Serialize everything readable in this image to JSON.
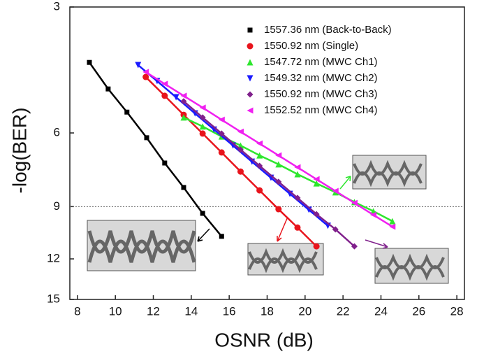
{
  "chart_data": {
    "type": "scatter",
    "x_label": "OSNR (dB)",
    "y_label": "-log(BER)",
    "xlim": [
      7.6,
      28.4
    ],
    "xticks": [
      8,
      10,
      12,
      14,
      16,
      18,
      20,
      22,
      24,
      26,
      28
    ],
    "ylim": [
      3,
      15
    ],
    "yticks": [
      3,
      6,
      9,
      12,
      15
    ],
    "y_scale": "log",
    "y_inverted": true,
    "reference_line": 9,
    "series": [
      {
        "name": "1557.36 nm (Back-to-Back)",
        "color": "#000000",
        "marker": "square",
        "x": [
          8.63,
          9.62,
          10.61,
          11.65,
          12.6,
          13.6,
          14.6,
          15.6
        ],
        "values": [
          4.07,
          4.71,
          5.35,
          6.16,
          7.08,
          8.1,
          9.34,
          10.6
        ]
      },
      {
        "name": "1550.92 nm (Single)",
        "color": "#e8141c",
        "marker": "circle",
        "x": [
          11.6,
          12.6,
          13.6,
          14.6,
          15.6,
          16.6,
          17.6,
          18.6,
          19.6,
          20.6
        ],
        "values": [
          4.41,
          4.89,
          5.43,
          6.02,
          6.68,
          7.42,
          8.23,
          9.13,
          10.1,
          11.2
        ]
      },
      {
        "name": "1547.72 nm (MWC Ch1)",
        "color": "#2ee62e",
        "marker": "triangle-up",
        "x": [
          13.6,
          14.6,
          15.6,
          16.6,
          17.6,
          18.6,
          19.6,
          20.6,
          21.6,
          22.6,
          23.6,
          24.6
        ],
        "values": [
          5.51,
          5.79,
          6.12,
          6.43,
          6.79,
          7.13,
          7.53,
          7.92,
          8.32,
          8.78,
          9.23,
          9.75
        ]
      },
      {
        "name": "1549.32 nm (MWC Ch2)",
        "color": "#1a1aff",
        "marker": "triangle-down",
        "x": [
          11.2,
          12.2,
          13.2,
          14.2,
          15.2,
          16.2,
          17.2,
          18.2,
          19.2,
          20.2,
          21.2
        ],
        "values": [
          4.13,
          4.51,
          4.93,
          5.39,
          5.89,
          6.43,
          7.03,
          7.68,
          8.39,
          9.16,
          10.0
        ]
      },
      {
        "name": "1550.92 nm (MWC Ch3)",
        "color": "#80208c",
        "marker": "diamond",
        "x": [
          13.6,
          14.6,
          15.6,
          16.6,
          17.6,
          18.6,
          19.6,
          20.6,
          21.6,
          22.6
        ],
        "values": [
          5.04,
          5.51,
          6.02,
          6.58,
          7.19,
          7.85,
          8.58,
          9.38,
          10.2,
          11.2
        ]
      },
      {
        "name": "1552.52 nm (MWC Ch4)",
        "color": "#f020f0",
        "marker": "triangle-left",
        "x": [
          11.6,
          12.6,
          13.6,
          14.6,
          15.6,
          16.6,
          17.6,
          18.6,
          19.6,
          20.6,
          21.6,
          22.6,
          23.6,
          24.6
        ],
        "values": [
          4.29,
          4.58,
          4.89,
          5.22,
          5.58,
          5.96,
          6.36,
          6.79,
          7.25,
          7.74,
          8.26,
          8.82,
          9.42,
          10.05
        ]
      }
    ]
  }
}
